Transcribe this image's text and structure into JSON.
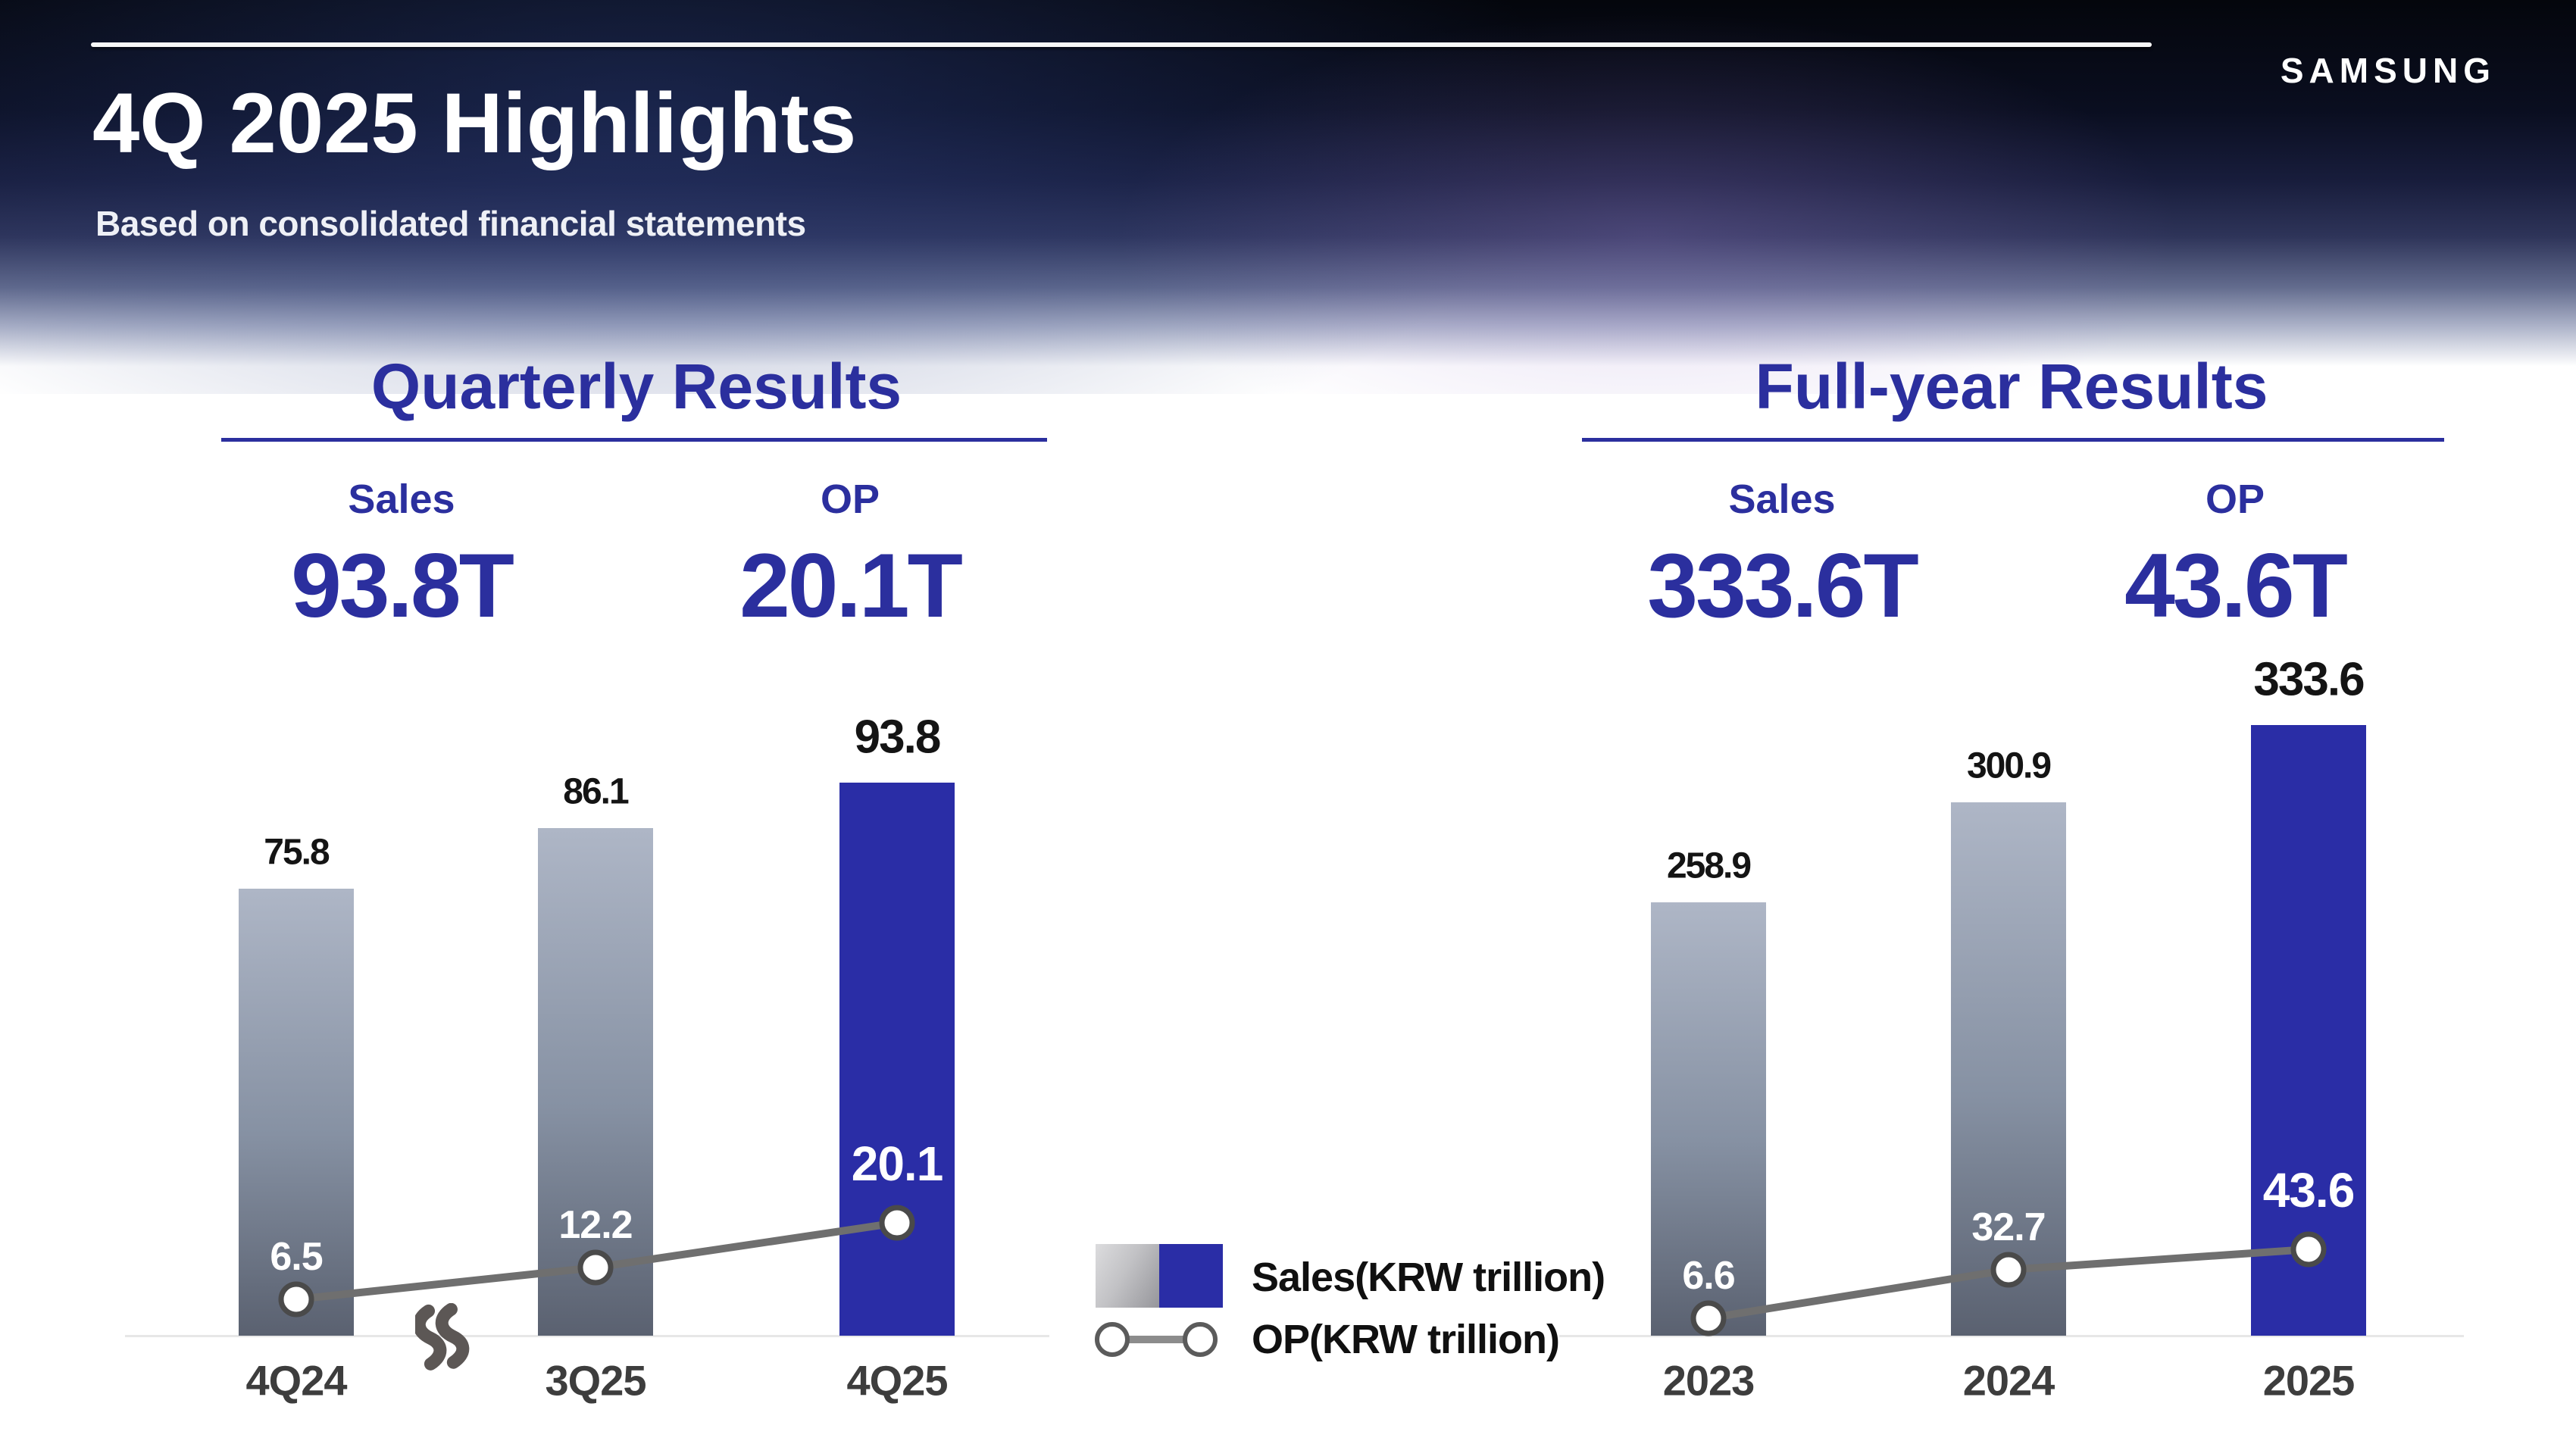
{
  "header": {
    "title": "4Q 2025 Highlights",
    "subtitle": "Based on consolidated financial statements",
    "logo": "SAMSUNG"
  },
  "colors": {
    "accent": "#2b2f9e",
    "bar-blue": "#2a2da6",
    "bar-gray-top": "#aeb6c6",
    "bar-gray-mid": "#8691a3",
    "bar-gray-bottom": "#5a6170",
    "op-line": "#6f6f6f",
    "marker-stroke": "#4a4a4a",
    "axis-line": "#e7e7e7",
    "value-label": "#141414",
    "xlabel": "#3d3d3d",
    "op-label": "#ffffff",
    "break-mark": "#5c5755"
  },
  "quarterly": {
    "section_title": "Quarterly Results",
    "stats": [
      {
        "label": "Sales",
        "value": "93.8T"
      },
      {
        "label": "OP",
        "value": "20.1T"
      }
    ]
  },
  "fullyear": {
    "section_title": "Full-year Results",
    "stats": [
      {
        "label": "Sales",
        "value": "333.6T"
      },
      {
        "label": "OP",
        "value": "43.6T"
      }
    ]
  },
  "legend": {
    "sales_label": "Sales(KRW trillion)",
    "op_label": "OP(KRW trillion)"
  },
  "chart_data": [
    {
      "type": "bar",
      "subtype": "bar+line",
      "title": "Quarterly Results",
      "unit": "KRW trillion",
      "categories": [
        "4Q24",
        "3Q25",
        "4Q25"
      ],
      "series": [
        {
          "name": "Sales(KRW trillion)",
          "type": "bar",
          "values": [
            75.8,
            86.1,
            93.8
          ]
        },
        {
          "name": "OP(KRW trillion)",
          "type": "line",
          "values": [
            6.5,
            12.2,
            20.1
          ]
        }
      ],
      "highlight_index": 2,
      "axis_break": true,
      "grid": false,
      "value_labels": true,
      "legend_position": "center-between-charts"
    },
    {
      "type": "bar",
      "subtype": "bar+line",
      "title": "Full-year Results",
      "unit": "KRW trillion",
      "categories": [
        "2023",
        "2024",
        "2025"
      ],
      "series": [
        {
          "name": "Sales(KRW trillion)",
          "type": "bar",
          "values": [
            258.9,
            300.9,
            333.6
          ]
        },
        {
          "name": "OP(KRW trillion)",
          "type": "line",
          "values": [
            6.6,
            32.7,
            43.6
          ]
        }
      ],
      "highlight_index": 2,
      "axis_break": false,
      "grid": false,
      "value_labels": true,
      "legend_position": "center-between-charts"
    }
  ]
}
